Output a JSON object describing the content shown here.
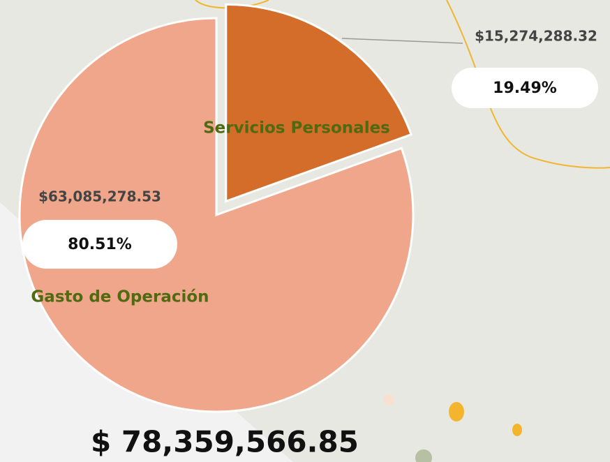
{
  "chart_data": {
    "type": "pie",
    "categories": [
      "Servicios Personales",
      "Gasto de Operación"
    ],
    "values": [
      19.49,
      80.51
    ],
    "value_labels": [
      "19.49%",
      "80.51%"
    ],
    "amount_labels": [
      "$15,274,288.32",
      "$63,085,278.53"
    ],
    "colors": [
      "#d46c2a",
      "#f0a68a"
    ],
    "total_label": "$  78,359,566.85"
  }
}
